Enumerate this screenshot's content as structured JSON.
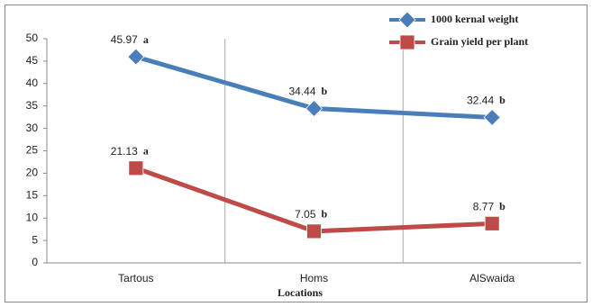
{
  "chart_data": {
    "type": "line",
    "x_label": "Locations",
    "categories": [
      "Tartous",
      "Homs",
      "AlSwaida"
    ],
    "series": [
      {
        "name": "1000 kernal weight",
        "color": "#4a7ebb",
        "marker": "diamond",
        "values": [
          45.97,
          34.44,
          32.44
        ],
        "letters": [
          "a",
          "b",
          "b"
        ]
      },
      {
        "name": "Grain yield per plant",
        "color": "#be4b48",
        "marker": "square",
        "values": [
          21.13,
          7.05,
          8.77
        ],
        "letters": [
          "a",
          "b",
          "b"
        ]
      }
    ],
    "ylim": [
      0,
      50
    ],
    "yticks": [
      0,
      5,
      10,
      15,
      20,
      25,
      30,
      35,
      40,
      45,
      50
    ],
    "legend": "top-right"
  }
}
